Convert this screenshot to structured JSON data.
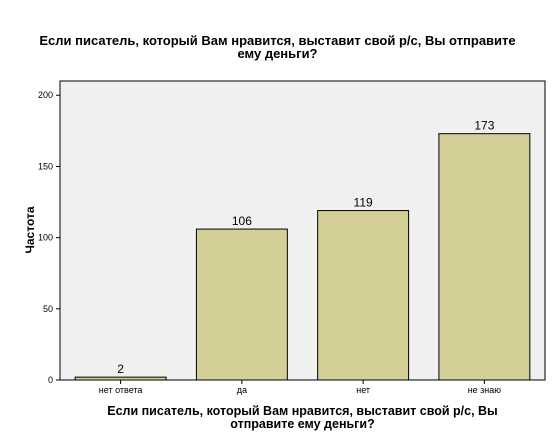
{
  "chart_data": {
    "type": "bar",
    "title_line1": "Если писатель, который Вам нравится, выставит свой р/с, Вы отправите",
    "title_line2": "ему деньги?",
    "xlabel_line1": "Если писатель, который Вам нравится, выставит свой р/с, Вы",
    "xlabel_line2": "отправите ему деньги?",
    "ylabel": "Частота",
    "categories": [
      "нет ответа",
      "да",
      "нет",
      "не знаю"
    ],
    "values": [
      2,
      106,
      119,
      173
    ],
    "ylim": [
      0,
      210
    ],
    "yticks": [
      0,
      50,
      100,
      150,
      200
    ],
    "grid": false,
    "colors": {
      "bar_fill": "#d3cf96",
      "bar_stroke": "#000000",
      "plot_background": "#f0f0f0"
    }
  }
}
